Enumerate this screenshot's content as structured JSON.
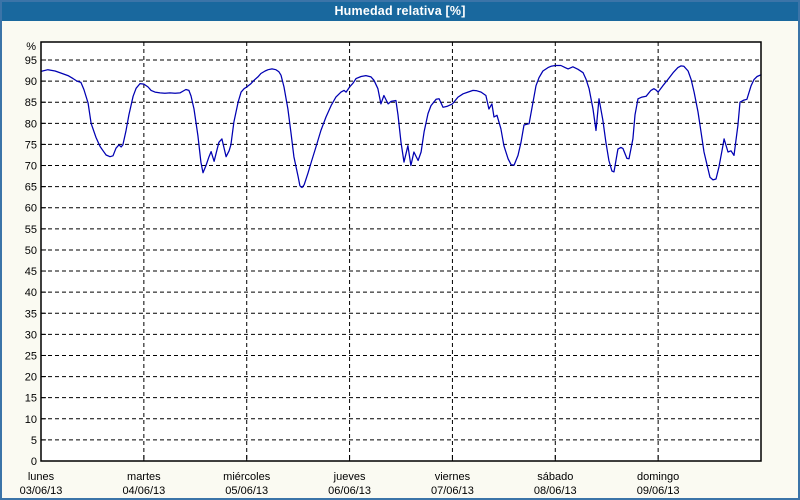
{
  "window": {
    "title": "Humedad relativa [%]"
  },
  "colors": {
    "title_bar": "#19689e",
    "title_text": "#ffffff",
    "frame_border": "#3b74a8",
    "background": "#fafaf2",
    "plot_background": "#ffffff",
    "axis": "#000000",
    "grid": "#000000",
    "line": "#0000b2",
    "label_text": "#000000"
  },
  "chart_data": {
    "type": "line",
    "title": "Humedad relativa [%]",
    "ylabel": "%",
    "y_unit_label": "%",
    "ylim": [
      0,
      100
    ],
    "y_tick_step": 5,
    "y_ticks": [
      0,
      5,
      10,
      15,
      20,
      25,
      30,
      35,
      40,
      45,
      50,
      55,
      60,
      65,
      70,
      75,
      80,
      85,
      90,
      95
    ],
    "x_range_hours": [
      0,
      168
    ],
    "grid": "dashed",
    "legend_position": "none",
    "x_days": [
      {
        "name": "lunes",
        "date": "03/06/13"
      },
      {
        "name": "martes",
        "date": "04/06/13"
      },
      {
        "name": "miércoles",
        "date": "05/06/13"
      },
      {
        "name": "jueves",
        "date": "06/06/13"
      },
      {
        "name": "viernes",
        "date": "07/06/13"
      },
      {
        "name": "sábado",
        "date": "08/06/13"
      },
      {
        "name": "domingo",
        "date": "09/06/13"
      }
    ],
    "series": [
      {
        "name": "Humedad relativa",
        "unit": "%",
        "color": "#0000b2",
        "points": [
          [
            0,
            92.3
          ],
          [
            1.6,
            92.7
          ],
          [
            3.3,
            92.4
          ],
          [
            4.7,
            91.9
          ],
          [
            6.3,
            91.3
          ],
          [
            7.5,
            90.6
          ],
          [
            8.4,
            90
          ],
          [
            9.3,
            89.7
          ],
          [
            10,
            88
          ],
          [
            11,
            84.8
          ],
          [
            11.7,
            80
          ],
          [
            12.8,
            76.7
          ],
          [
            13.8,
            74.5
          ],
          [
            14.5,
            73.5
          ],
          [
            15.2,
            72.5
          ],
          [
            16.1,
            72.1
          ],
          [
            16.8,
            72.3
          ],
          [
            17.5,
            74.1
          ],
          [
            18.2,
            74.9
          ],
          [
            18.7,
            74.4
          ],
          [
            19.1,
            74.9
          ],
          [
            19.8,
            78.1
          ],
          [
            20.5,
            82
          ],
          [
            21.5,
            86.4
          ],
          [
            22.2,
            88.3
          ],
          [
            23.1,
            89.4
          ],
          [
            24,
            89.3
          ],
          [
            25,
            88.6
          ],
          [
            25.7,
            87.8
          ],
          [
            26.6,
            87.4
          ],
          [
            27.8,
            87.2
          ],
          [
            28.9,
            87.1
          ],
          [
            30.1,
            87.2
          ],
          [
            31.3,
            87.1
          ],
          [
            32.4,
            87.2
          ],
          [
            33.8,
            88
          ],
          [
            34.5,
            87.8
          ],
          [
            35,
            86.5
          ],
          [
            35.7,
            83.4
          ],
          [
            36.6,
            77.1
          ],
          [
            37.3,
            70.8
          ],
          [
            37.8,
            68.3
          ],
          [
            38.5,
            70
          ],
          [
            39.2,
            72.1
          ],
          [
            39.7,
            73.3
          ],
          [
            40.4,
            71
          ],
          [
            41.5,
            75.5
          ],
          [
            42.2,
            76.3
          ],
          [
            43.2,
            72.1
          ],
          [
            43.9,
            73.5
          ],
          [
            44.3,
            74.9
          ],
          [
            45,
            80.3
          ],
          [
            46,
            85
          ],
          [
            46.7,
            87.4
          ],
          [
            47.4,
            88.2
          ],
          [
            48,
            88.6
          ],
          [
            49,
            89.4
          ],
          [
            49.7,
            90.2
          ],
          [
            50.6,
            91
          ],
          [
            51.3,
            91.8
          ],
          [
            52.3,
            92.4
          ],
          [
            53,
            92.7
          ],
          [
            53.9,
            92.9
          ],
          [
            54.8,
            92.7
          ],
          [
            55.5,
            92.2
          ],
          [
            56,
            91.4
          ],
          [
            56.7,
            88.6
          ],
          [
            57.6,
            83.4
          ],
          [
            58.3,
            77.9
          ],
          [
            59,
            72.1
          ],
          [
            60,
            67.4
          ],
          [
            60.4,
            65.2
          ],
          [
            60.9,
            64.8
          ],
          [
            61.4,
            65.4
          ],
          [
            62.3,
            68.2
          ],
          [
            63,
            70.6
          ],
          [
            64.2,
            74.5
          ],
          [
            65.3,
            78.3
          ],
          [
            66.5,
            81.5
          ],
          [
            67.7,
            84.2
          ],
          [
            68.8,
            86.2
          ],
          [
            70,
            87.4
          ],
          [
            70.7,
            87.8
          ],
          [
            71.2,
            87.4
          ],
          [
            72,
            88.6
          ],
          [
            72.8,
            89.5
          ],
          [
            73.5,
            90.6
          ],
          [
            74.7,
            91.1
          ],
          [
            75.8,
            91.3
          ],
          [
            77,
            91
          ],
          [
            77.7,
            90.2
          ],
          [
            78.6,
            88.2
          ],
          [
            79.3,
            84.6
          ],
          [
            80,
            86.6
          ],
          [
            81,
            84.6
          ],
          [
            81.7,
            85.2
          ],
          [
            82.8,
            85.4
          ],
          [
            83.3,
            82
          ],
          [
            84,
            75.5
          ],
          [
            84.7,
            70.8
          ],
          [
            85.6,
            74.7
          ],
          [
            86.3,
            70
          ],
          [
            87,
            73.2
          ],
          [
            88,
            71.2
          ],
          [
            88.7,
            73.2
          ],
          [
            89.4,
            78
          ],
          [
            90.3,
            82.3
          ],
          [
            91,
            84.2
          ],
          [
            92.2,
            85.7
          ],
          [
            92.9,
            85.8
          ],
          [
            93.8,
            83.8
          ],
          [
            94.7,
            84
          ],
          [
            96,
            84.6
          ],
          [
            97.3,
            86.2
          ],
          [
            98.5,
            87
          ],
          [
            99.6,
            87.4
          ],
          [
            100.8,
            87.8
          ],
          [
            101.7,
            87.7
          ],
          [
            102.7,
            87.4
          ],
          [
            103.8,
            86.6
          ],
          [
            104.5,
            83.4
          ],
          [
            105.2,
            84.6
          ],
          [
            105.7,
            81.5
          ],
          [
            106.4,
            81.9
          ],
          [
            107.3,
            78.7
          ],
          [
            108,
            74.7
          ],
          [
            109,
            71.6
          ],
          [
            109.7,
            70.2
          ],
          [
            110.4,
            70.1
          ],
          [
            111.3,
            72.4
          ],
          [
            112,
            75.5
          ],
          [
            112.7,
            79.6
          ],
          [
            113.9,
            79.9
          ],
          [
            114.8,
            85
          ],
          [
            115.5,
            88.9
          ],
          [
            116.2,
            90.8
          ],
          [
            117.1,
            92.4
          ],
          [
            118.3,
            93.2
          ],
          [
            119,
            93.5
          ],
          [
            120,
            93.7
          ],
          [
            121.3,
            93.7
          ],
          [
            122.3,
            93.2
          ],
          [
            123,
            92.9
          ],
          [
            124.1,
            93.4
          ],
          [
            125.3,
            92.8
          ],
          [
            126.5,
            92
          ],
          [
            127.2,
            90.4
          ],
          [
            127.9,
            88.2
          ],
          [
            128.8,
            83.4
          ],
          [
            129.5,
            78.3
          ],
          [
            130.2,
            85.8
          ],
          [
            131.1,
            80.7
          ],
          [
            131.8,
            75.5
          ],
          [
            132.5,
            71.2
          ],
          [
            133.2,
            68.7
          ],
          [
            133.7,
            68.5
          ],
          [
            134.6,
            73.9
          ],
          [
            135.3,
            74.3
          ],
          [
            135.8,
            74
          ],
          [
            136.7,
            71.7
          ],
          [
            137.2,
            71.6
          ],
          [
            138.1,
            76.3
          ],
          [
            138.6,
            82
          ],
          [
            139.3,
            85.8
          ],
          [
            140.2,
            86.2
          ],
          [
            141.2,
            86.4
          ],
          [
            142.3,
            87.8
          ],
          [
            143,
            88.2
          ],
          [
            143.5,
            87.9
          ],
          [
            144,
            87.4
          ],
          [
            145.1,
            88.9
          ],
          [
            146.3,
            90.4
          ],
          [
            147.5,
            92
          ],
          [
            148.6,
            93.2
          ],
          [
            149.3,
            93.6
          ],
          [
            150,
            93.5
          ],
          [
            151,
            92.4
          ],
          [
            151.7,
            90.4
          ],
          [
            152.4,
            87.4
          ],
          [
            153.3,
            82.7
          ],
          [
            154,
            78
          ],
          [
            154.7,
            73.2
          ],
          [
            155.6,
            69.3
          ],
          [
            156.1,
            67.2
          ],
          [
            156.8,
            66.6
          ],
          [
            157.5,
            66.8
          ],
          [
            158.2,
            69.7
          ],
          [
            159.1,
            74.7
          ],
          [
            159.4,
            76.3
          ],
          [
            160.3,
            73.2
          ],
          [
            161,
            73.5
          ],
          [
            161.7,
            72.4
          ],
          [
            162.6,
            79.5
          ],
          [
            163.1,
            85
          ],
          [
            164,
            85.5
          ],
          [
            164.7,
            85.7
          ],
          [
            165.7,
            88.9
          ],
          [
            166.4,
            90.4
          ],
          [
            167.1,
            91.1
          ],
          [
            168,
            91.5
          ]
        ]
      }
    ]
  }
}
